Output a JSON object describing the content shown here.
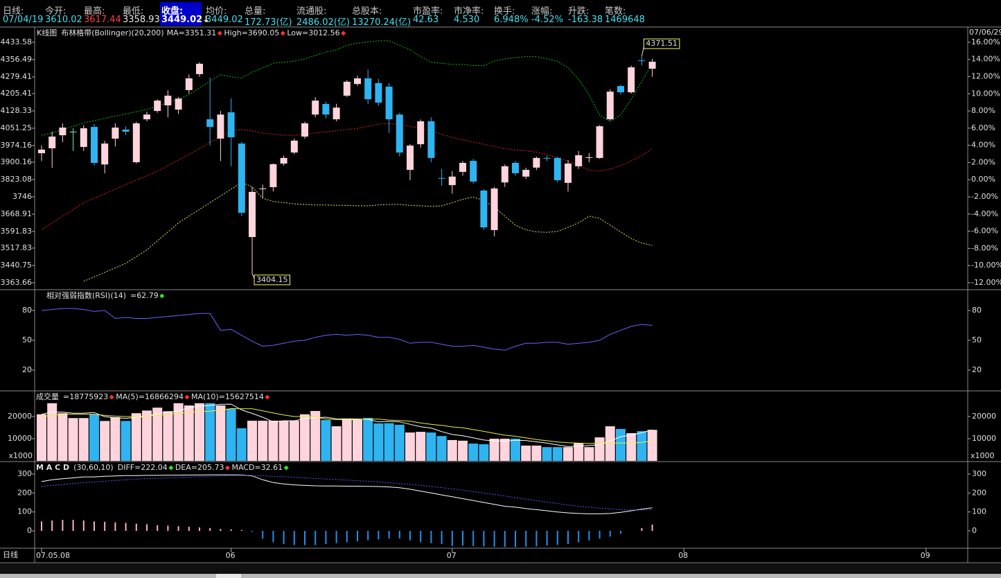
{
  "header": {
    "items": [
      {
        "label": "日线:",
        "value": "07/04/19"
      },
      {
        "label": "今开:",
        "value": "3610.02"
      },
      {
        "label": "最高:",
        "value": "3617.44"
      },
      {
        "label": "最低:",
        "value": "3358.93"
      },
      {
        "label": "收盘:",
        "value": "3449.02↓"
      },
      {
        "label": "均价:",
        "value": "3449.02"
      },
      {
        "label": "总量:",
        "value": "172.73(亿)"
      },
      {
        "label": "流通股:",
        "value": "2486.02(亿)"
      },
      {
        "label": "总股本:",
        "value": "13270.24(亿)"
      },
      {
        "label": "市盈率:",
        "value": "42.63"
      },
      {
        "label": "市净率:",
        "value": "4.530"
      },
      {
        "label": "换手:",
        "value": "6.948%"
      },
      {
        "label": "涨幅:",
        "value": "-4.52%"
      },
      {
        "label": "升跌:",
        "value": "-163.38"
      },
      {
        "label": "笔数:",
        "value": "1469648"
      }
    ]
  },
  "chart_data": [
    {
      "type": "candlestick",
      "title": "K线图",
      "title_color": "#ffffff",
      "subtitle": "布林格带(Bollinger)(20,200)",
      "subtitle_color": "#f0f040",
      "readouts": [
        {
          "text": "MA=3351.31",
          "color": "#ff3030",
          "marker_color": "#ff3030"
        },
        {
          "text": "High=3690.05",
          "color": "#30e030",
          "marker_color": "#ff3030"
        },
        {
          "text": "Low=3012.56",
          "color": "#ffffff",
          "marker_color": "#ff3030"
        }
      ],
      "date_label": "07/06/29",
      "open": [
        3940,
        3962,
        4020,
        4036,
        3968,
        4057,
        3890,
        4005,
        4045,
        3900,
        4091,
        4128,
        4153,
        4134,
        4221,
        4292,
        4091,
        4005,
        4122,
        3983,
        3567,
        3780,
        3789,
        3894,
        3943,
        4014,
        4112,
        4159,
        4091,
        4196,
        4248,
        4273,
        4252,
        4236,
        4112,
        3866,
        3980,
        4082,
        3830,
        3798,
        3857,
        3906,
        3774,
        3598,
        3810,
        3897,
        3836,
        3876,
        3919,
        3919,
        3808,
        3882,
        3919,
        3919,
        4091,
        4239,
        4211,
        4353,
        4316
      ],
      "high": [
        3975,
        4036,
        4073,
        4051,
        4065,
        4070,
        3995,
        4073,
        4060,
        4080,
        4125,
        4180,
        4220,
        4190,
        4290,
        4345,
        4276,
        4128,
        4184,
        3990,
        3790,
        3800,
        3895,
        3930,
        4005,
        4080,
        4190,
        4170,
        4160,
        4265,
        4285,
        4313,
        4270,
        4252,
        4120,
        3980,
        4090,
        4100,
        3870,
        3860,
        3905,
        3915,
        3780,
        3790,
        3890,
        3905,
        3875,
        3925,
        3930,
        3925,
        3910,
        3950,
        3940,
        4065,
        4225,
        4245,
        4330,
        4371.51,
        4360
      ],
      "low": [
        3905,
        3875,
        3990,
        3950,
        3950,
        3885,
        3850,
        3970,
        4020,
        3895,
        4082,
        4120,
        4100,
        4115,
        4205,
        4280,
        3974,
        3905,
        3882,
        3660,
        3404.15,
        3740,
        3770,
        3885,
        3935,
        4005,
        4100,
        4095,
        4082,
        4190,
        4240,
        4159,
        4150,
        4030,
        3925,
        3820,
        3965,
        3900,
        3795,
        3760,
        3840,
        3805,
        3600,
        3570,
        3790,
        3840,
        3825,
        3865,
        3905,
        3810,
        3770,
        3870,
        3900,
        3915,
        4085,
        4200,
        4205,
        4330,
        4280
      ],
      "close": [
        3956,
        4014,
        4054,
        4036,
        4051,
        3897,
        3983,
        4054,
        4036,
        4073,
        4112,
        4174,
        4196,
        4183,
        4273,
        4338,
        4057,
        4112,
        4011,
        3675,
        3768,
        3783,
        3891,
        3919,
        3996,
        4073,
        4174,
        4112,
        4143,
        4258,
        4273,
        4180,
        4165,
        4091,
        3943,
        3974,
        4082,
        3919,
        3827,
        3836,
        3897,
        3814,
        3610,
        3783,
        3882,
        3851,
        3866,
        3919,
        3916,
        3820,
        3894,
        3931,
        3922,
        4060,
        4214,
        4211,
        4322,
        4350,
        4347
      ],
      "up_color": "#ffd4dc",
      "down_color": "#2eb4f0",
      "flat_color": "#70f0c0",
      "series": [
        {
          "color": "#10c010",
          "dash": true,
          "values": [
            4020,
            4030,
            4045,
            4060,
            4075,
            4085,
            4095,
            4105,
            4115,
            4125,
            4135,
            4150,
            4165,
            4180,
            4200,
            4230,
            4260,
            4290,
            4280,
            4275,
            4300,
            4320,
            4340,
            4345,
            4350,
            4360,
            4375,
            4390,
            4400,
            4420,
            4430,
            4435,
            4440,
            4440,
            4420,
            4400,
            4370,
            4345,
            4340,
            4335,
            4335,
            4330,
            4330,
            4350,
            4360,
            4365,
            4370,
            4370,
            4360,
            4350,
            4320,
            4270,
            4200,
            4110,
            4080,
            4110,
            4180,
            4260,
            4340
          ]
        },
        {
          "color": "#e02020",
          "dash": true,
          "values": [
            3600,
            3630,
            3660,
            3690,
            3720,
            3740,
            3760,
            3780,
            3800,
            3820,
            3840,
            3860,
            3885,
            3910,
            3935,
            3960,
            3990,
            4010,
            4040,
            4045,
            4040,
            4030,
            4025,
            4020,
            4020,
            4025,
            4030,
            4035,
            4040,
            4045,
            4050,
            4060,
            4070,
            4072,
            4068,
            4060,
            4050,
            4040,
            4025,
            4010,
            4000,
            3990,
            3980,
            3970,
            3960,
            3955,
            3950,
            3945,
            3935,
            3920,
            3905,
            3885,
            3865,
            3860,
            3870,
            3885,
            3905,
            3930,
            3960
          ]
        },
        {
          "color": "#e8e860",
          "dash": true,
          "values": [
            null,
            null,
            null,
            null,
            3370,
            3390,
            3410,
            3430,
            3450,
            3480,
            3510,
            3550,
            3590,
            3630,
            3660,
            3690,
            3720,
            3750,
            3780,
            3810,
            3790,
            3740,
            3725,
            3720,
            3715,
            3712,
            3710,
            3710,
            3708,
            3708,
            3706,
            3706,
            3710,
            3712,
            3712,
            3708,
            3706,
            3704,
            3706,
            3720,
            3735,
            3745,
            3730,
            3700,
            3660,
            3620,
            3600,
            3590,
            3588,
            3592,
            3610,
            3630,
            3660,
            3650,
            3620,
            3590,
            3560,
            3540,
            3530
          ]
        }
      ],
      "ylim": [
        3339.0,
        4492.16
      ],
      "yticks": [
        4433.58,
        4356.49,
        4279.41,
        4205.41,
        4128.33,
        4051.25,
        3974.16,
        3900.16,
        3823.08,
        3746,
        3668.91,
        3591.83,
        3517.83,
        3440.75,
        3363.66
      ],
      "y2lim": [
        -12.65,
        17.53
      ],
      "y2ticks": [
        {
          "value": 16,
          "label": "16.00%"
        },
        {
          "value": 14,
          "label": "14.00%"
        },
        {
          "value": 12,
          "label": "12.00%"
        },
        {
          "value": 10,
          "label": "10.00%"
        },
        {
          "value": 8,
          "label": "8.00%"
        },
        {
          "value": 6,
          "label": "6.00%"
        },
        {
          "value": 4,
          "label": "4.00%"
        },
        {
          "value": 2,
          "label": "2.00%"
        },
        {
          "value": 0,
          "label": "0.00%"
        },
        {
          "value": -2,
          "label": "-2.00%"
        },
        {
          "value": -4,
          "label": "-4.00%"
        },
        {
          "value": -6,
          "label": "-6.00%"
        },
        {
          "value": -8,
          "label": "-8.00%"
        },
        {
          "value": -10,
          "label": "-10.00%"
        },
        {
          "value": -12,
          "label": "-12.00%"
        }
      ],
      "annotations": [
        {
          "field": "high",
          "index": 57
        },
        {
          "field": "low",
          "index": 20
        }
      ]
    },
    {
      "type": "line",
      "title": "相对强弱指数(RSI)(14)",
      "title_color": "#f0f040",
      "readouts": [
        {
          "text": "=62.79",
          "color": "#8080ff",
          "marker_color": "#30e030"
        }
      ],
      "series": [
        {
          "color": "#6464ff",
          "values": [
            80,
            81,
            82,
            82,
            81,
            79,
            80,
            72,
            73,
            72,
            72,
            73,
            74,
            75,
            76,
            77,
            77,
            60,
            61,
            55,
            49,
            44,
            45,
            47,
            49,
            50,
            53,
            55,
            56,
            55,
            56,
            55,
            53,
            53,
            51,
            47,
            48,
            48,
            46,
            44,
            44,
            45,
            43,
            41,
            40,
            44,
            47,
            47,
            48,
            48,
            46,
            47,
            48,
            50,
            56,
            60,
            64,
            66,
            65
          ]
        }
      ],
      "ylim": [
        1.16,
        98.84
      ],
      "yticks": [
        80,
        50,
        20
      ]
    },
    {
      "type": "bar",
      "title": "成交量",
      "title_color": "#f0f040",
      "readouts": [
        {
          "text": "=18775923",
          "color": "#ff4040",
          "marker_color": "#ff3030"
        },
        {
          "text": "MA(5)=16866294",
          "color": "#ffffff",
          "marker_color": "#ff3030"
        },
        {
          "text": "MA(10)=15627514",
          "color": "#f0f040",
          "marker_color": "#ff3030"
        }
      ],
      "values": [
        21000,
        26000,
        21500,
        19300,
        19300,
        21000,
        18000,
        19700,
        18000,
        21500,
        22700,
        24000,
        22400,
        26000,
        25000,
        26000,
        26000,
        25000,
        23400,
        14700,
        18100,
        18100,
        18100,
        18100,
        18100,
        21000,
        22500,
        18400,
        15600,
        19100,
        18800,
        19400,
        16900,
        17000,
        16300,
        12800,
        13100,
        12800,
        11200,
        9400,
        9100,
        7800,
        7500,
        10000,
        10000,
        10000,
        6900,
        6900,
        6200,
        6200,
        6200,
        8100,
        6200,
        10600,
        15600,
        14400,
        12500,
        13400,
        14000
      ],
      "up_color": "#ffd4dc",
      "down_color": "#2eb4f0",
      "series": [
        {
          "color": "#ffffff",
          "values": [
            21000,
            22000,
            22000,
            21500,
            21500,
            21800,
            19900,
            19500,
            19200,
            19600,
            20200,
            21200,
            22000,
            22500,
            24000,
            24700,
            25000,
            25500,
            25600,
            23000,
            21400,
            19700,
            17600,
            18100,
            18100,
            19000,
            19500,
            19700,
            19000,
            18900,
            18900,
            18700,
            17600,
            17800,
            17600,
            16500,
            15400,
            14800,
            13200,
            11900,
            11300,
            10400,
            9400,
            9000,
            8900,
            9300,
            9200,
            8600,
            8000,
            7200,
            6500,
            6600,
            6900,
            7300,
            9000,
            10900,
            11600,
            12700,
            14000
          ]
        },
        {
          "color": "#f0f040",
          "values": [
            20000,
            20500,
            21000,
            21000,
            21000,
            21000,
            20500,
            20200,
            20000,
            20000,
            20200,
            20500,
            20900,
            21500,
            22000,
            22200,
            22400,
            22900,
            23600,
            23500,
            23500,
            22600,
            21600,
            20700,
            20000,
            20000,
            19800,
            18900,
            18600,
            18500,
            18700,
            18800,
            18800,
            18400,
            18200,
            17900,
            17100,
            16500,
            16000,
            15300,
            14900,
            14100,
            13300,
            12400,
            11600,
            11100,
            10400,
            9600,
            9100,
            8500,
            8200,
            8000,
            7800,
            8000,
            8000,
            8100,
            8100,
            8300,
            9000
          ]
        }
      ],
      "ylim": [
        0,
        30625
      ],
      "yticks": [
        20000,
        10000
      ],
      "unit_label": "x1000"
    },
    {
      "type": "macd",
      "title": "M A C D",
      "title_color": "#f0f040",
      "readouts": [
        {
          "text": "(30,60,10)",
          "color": "#ffffff"
        },
        {
          "text": "DIFF=222.04",
          "color": "#ffffff",
          "marker_color": "#30e030"
        },
        {
          "text": "DEA=205.73",
          "color": "#6a6aff",
          "marker_color": "#ff3030"
        },
        {
          "text": "MACD=32.61",
          "color": "#ffffff",
          "marker_color": "#30e030"
        }
      ],
      "series": [
        {
          "color": "#ffffff",
          "values": [
            260,
            270,
            275,
            280,
            285,
            285,
            288,
            290,
            292,
            292,
            293,
            293,
            294,
            294,
            295,
            295,
            296,
            296,
            296,
            295,
            290,
            270,
            255,
            248,
            243,
            240,
            238,
            237,
            237,
            236,
            236,
            235,
            234,
            232,
            228,
            220,
            210,
            200,
            190,
            180,
            170,
            160,
            150,
            140,
            130,
            125,
            118,
            112,
            106,
            100,
            95,
            92,
            90,
            90,
            92,
            98,
            106,
            115,
            122
          ]
        },
        {
          "color": "#5a5aff",
          "dash": true,
          "values": [
            235,
            240,
            245,
            250,
            255,
            258,
            262,
            266,
            270,
            273,
            276,
            278,
            280,
            282,
            284,
            286,
            288,
            290,
            292,
            293,
            292,
            290,
            288,
            286,
            283,
            280,
            277,
            274,
            271,
            268,
            265,
            262,
            258,
            254,
            250,
            246,
            240,
            234,
            228,
            222,
            215,
            208,
            200,
            192,
            184,
            176,
            168,
            160,
            152,
            144,
            137,
            130,
            125,
            120,
            116,
            112,
            110,
            110,
            112
          ]
        }
      ],
      "histogram": [
        50,
        55,
        58,
        58,
        55,
        50,
        48,
        45,
        42,
        38,
        35,
        30,
        28,
        25,
        22,
        18,
        15,
        10,
        8,
        5,
        -5,
        -40,
        -60,
        -70,
        -75,
        -75,
        -75,
        -70,
        -65,
        -60,
        -55,
        -50,
        -45,
        -40,
        -40,
        -50,
        -60,
        -65,
        -70,
        -80,
        -78,
        -80,
        -82,
        -84,
        -85,
        -85,
        -84,
        -82,
        -78,
        -74,
        -70,
        -60,
        -50,
        -40,
        -30,
        -15,
        0,
        15,
        33
      ],
      "up_color": "#ffb0c0",
      "down_color": "#2090f0",
      "ylim": [
        -87.8,
        354.9
      ],
      "yticks": [
        300,
        200,
        100,
        0
      ],
      "x_ticks": [
        {
          "index": 0,
          "label": "07.05.08"
        },
        {
          "index": 18,
          "label": "06"
        },
        {
          "index": 39,
          "label": "07"
        },
        {
          "index": 61,
          "label": "08"
        },
        {
          "index": 84,
          "label": "09"
        }
      ],
      "period_label": "日线"
    }
  ]
}
